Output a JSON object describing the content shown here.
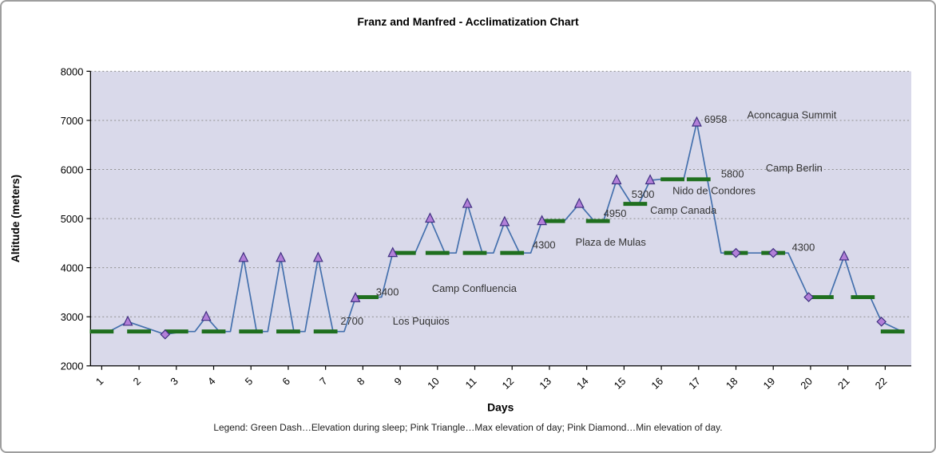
{
  "title": "Franz and Manfred - Acclimatization Chart",
  "x_axis_label": "Days",
  "y_axis_label": "Altitude (meters)",
  "legend_caption": "Legend: Green Dash…Elevation during sleep; Pink Triangle…Max elevation of day; Pink Diamond…Min elevation of day.",
  "colors": {
    "plot_bg": "#d9d9ea",
    "grid": "#8f8f8f",
    "axis": "#000000",
    "line": "#4470ad",
    "marker_fill": "#b27fd8",
    "marker_stroke": "#3f2f80",
    "sleep_dash": "#1f6f1f",
    "annotation": "#333333"
  },
  "chart_data": {
    "type": "line",
    "title": "Franz and Manfred - Acclimatization Chart",
    "xlabel": "Days",
    "ylabel": "Altitude (meters)",
    "xlim": [
      0.7,
      22.7
    ],
    "ylim": [
      2000,
      8000
    ],
    "x_ticks": [
      1,
      2,
      3,
      4,
      5,
      6,
      7,
      8,
      9,
      10,
      11,
      12,
      13,
      14,
      15,
      16,
      17,
      18,
      19,
      20,
      21,
      22
    ],
    "y_ticks": [
      2000,
      3000,
      4000,
      5000,
      6000,
      7000,
      8000
    ],
    "grid": "horizontal-dotted",
    "legend_position": "bottom-caption",
    "series": [
      {
        "name": "elevation_profile",
        "marker": "none",
        "points": [
          [
            0.7,
            2700
          ],
          [
            1.2,
            2700
          ],
          [
            1.7,
            2900
          ],
          [
            2.7,
            2640
          ],
          [
            3.2,
            2700
          ],
          [
            3.5,
            2700
          ],
          [
            3.8,
            3000
          ],
          [
            4.15,
            2700
          ],
          [
            4.45,
            2700
          ],
          [
            4.8,
            4200
          ],
          [
            5.15,
            2700
          ],
          [
            5.45,
            2700
          ],
          [
            5.8,
            4200
          ],
          [
            6.15,
            2700
          ],
          [
            6.45,
            2700
          ],
          [
            6.8,
            4200
          ],
          [
            7.2,
            2700
          ],
          [
            7.5,
            2700
          ],
          [
            7.8,
            3380
          ],
          [
            8.1,
            3400
          ],
          [
            8.5,
            3400
          ],
          [
            8.8,
            4300
          ],
          [
            9.4,
            4300
          ],
          [
            9.8,
            5000
          ],
          [
            10.2,
            4300
          ],
          [
            10.5,
            4300
          ],
          [
            10.8,
            5300
          ],
          [
            11.2,
            4300
          ],
          [
            11.5,
            4300
          ],
          [
            11.8,
            4930
          ],
          [
            12.2,
            4300
          ],
          [
            12.5,
            4300
          ],
          [
            12.8,
            4950
          ],
          [
            13.4,
            4950
          ],
          [
            13.8,
            5300
          ],
          [
            14.2,
            4950
          ],
          [
            14.45,
            4950
          ],
          [
            14.8,
            5780
          ],
          [
            15.2,
            5300
          ],
          [
            15.4,
            5300
          ],
          [
            15.7,
            5780
          ],
          [
            16.0,
            5800
          ],
          [
            16.6,
            5800
          ],
          [
            16.95,
            6958
          ],
          [
            17.6,
            4300
          ],
          [
            19.4,
            4300
          ],
          [
            19.95,
            3400
          ],
          [
            20.5,
            3400
          ],
          [
            20.9,
            4230
          ],
          [
            21.25,
            3400
          ],
          [
            21.6,
            3400
          ],
          [
            21.9,
            2900
          ],
          [
            22.45,
            2700
          ]
        ]
      },
      {
        "name": "max_elevation_of_day",
        "marker": "triangle",
        "points": [
          [
            1.7,
            2900
          ],
          [
            3.8,
            3000
          ],
          [
            4.8,
            4200
          ],
          [
            5.8,
            4200
          ],
          [
            6.8,
            4200
          ],
          [
            7.8,
            3380
          ],
          [
            8.8,
            4300
          ],
          [
            9.8,
            5000
          ],
          [
            10.8,
            5300
          ],
          [
            11.8,
            4930
          ],
          [
            12.8,
            4950
          ],
          [
            13.8,
            5300
          ],
          [
            14.8,
            5780
          ],
          [
            15.7,
            5780
          ],
          [
            16.95,
            6958
          ],
          [
            20.9,
            4230
          ]
        ]
      },
      {
        "name": "min_elevation_of_day",
        "marker": "diamond",
        "points": [
          [
            2.7,
            2640
          ],
          [
            18.0,
            4300
          ],
          [
            19.0,
            4300
          ],
          [
            19.95,
            3400
          ],
          [
            21.9,
            2900
          ]
        ]
      },
      {
        "name": "sleep_elevation",
        "marker": "green-dash",
        "points": [
          [
            1,
            2700
          ],
          [
            2,
            2700
          ],
          [
            3,
            2700
          ],
          [
            4,
            2700
          ],
          [
            5,
            2700
          ],
          [
            6,
            2700
          ],
          [
            7,
            2700
          ],
          [
            8.1,
            3400
          ],
          [
            9.1,
            4300
          ],
          [
            10,
            4300
          ],
          [
            11,
            4300
          ],
          [
            12,
            4300
          ],
          [
            13.1,
            4950
          ],
          [
            14.3,
            4950
          ],
          [
            15.3,
            5300
          ],
          [
            16.3,
            5800
          ],
          [
            17.0,
            5800
          ],
          [
            18,
            4300
          ],
          [
            19,
            4300
          ],
          [
            20.3,
            3400
          ],
          [
            21.4,
            3400
          ],
          [
            22.2,
            2700
          ]
        ]
      }
    ],
    "annotations": [
      {
        "day": 7.4,
        "alt": 2840,
        "text": "2700"
      },
      {
        "day": 8.8,
        "alt": 2840,
        "text": "Los Puquios"
      },
      {
        "day": 8.35,
        "alt": 3430,
        "text": "3400"
      },
      {
        "day": 9.85,
        "alt": 3510,
        "text": "Camp Confluencia"
      },
      {
        "day": 12.55,
        "alt": 4390,
        "text": "4300"
      },
      {
        "day": 13.7,
        "alt": 4450,
        "text": "Plaza de Mulas"
      },
      {
        "day": 14.45,
        "alt": 5030,
        "text": "4950"
      },
      {
        "day": 15.7,
        "alt": 5100,
        "text": "Camp Canada"
      },
      {
        "day": 15.2,
        "alt": 5420,
        "text": "5300"
      },
      {
        "day": 16.3,
        "alt": 5500,
        "text": "Nido de Condores"
      },
      {
        "day": 17.6,
        "alt": 5840,
        "text": "5800"
      },
      {
        "day": 18.8,
        "alt": 5960,
        "text": "Camp Berlin"
      },
      {
        "day": 17.15,
        "alt": 6950,
        "text": "6958"
      },
      {
        "day": 18.3,
        "alt": 7040,
        "text": "Aconcagua Summit"
      },
      {
        "day": 19.5,
        "alt": 4340,
        "text": "4300"
      }
    ]
  }
}
